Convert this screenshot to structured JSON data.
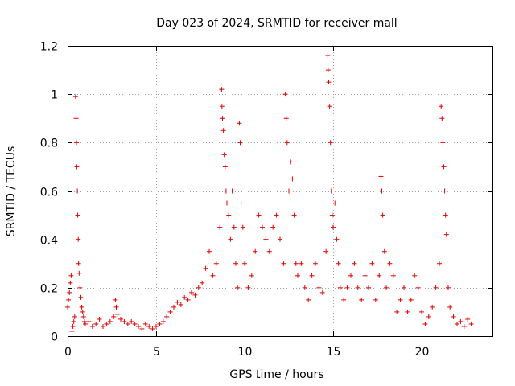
{
  "chart_data": {
    "type": "scatter",
    "title": "Day 023 of 2024, SRMTID for receiver mall",
    "xlabel": "GPS time / hours",
    "ylabel": "SRMTID / TECUs",
    "xlim": [
      0,
      24
    ],
    "ylim": [
      0,
      1.2
    ],
    "x_ticks": [
      0,
      5,
      10,
      15,
      20
    ],
    "y_ticks": [
      0,
      0.2,
      0.4,
      0.6,
      0.8,
      1,
      1.2
    ],
    "x_tick_labels": [
      "0",
      "5",
      "10",
      "15",
      "20"
    ],
    "y_tick_labels": [
      "0",
      "0.2",
      "0.4",
      "0.6",
      "0.8",
      "1",
      "1.2"
    ],
    "grid": true,
    "marker": "+",
    "color": "#e00000",
    "series": [
      {
        "name": "SRMTID",
        "points": [
          [
            0.0,
            0.12
          ],
          [
            0.05,
            0.15
          ],
          [
            0.1,
            0.18
          ],
          [
            0.15,
            0.22
          ],
          [
            0.2,
            0.25
          ],
          [
            0.25,
            0.02
          ],
          [
            0.3,
            0.04
          ],
          [
            0.35,
            0.06
          ],
          [
            0.4,
            0.08
          ],
          [
            0.45,
            0.99
          ],
          [
            0.48,
            0.9
          ],
          [
            0.5,
            0.8
          ],
          [
            0.52,
            0.7
          ],
          [
            0.55,
            0.6
          ],
          [
            0.57,
            0.5
          ],
          [
            0.6,
            0.4
          ],
          [
            0.62,
            0.3
          ],
          [
            0.65,
            0.26
          ],
          [
            0.7,
            0.2
          ],
          [
            0.75,
            0.16
          ],
          [
            0.8,
            0.12
          ],
          [
            0.85,
            0.1
          ],
          [
            0.9,
            0.08
          ],
          [
            0.95,
            0.06
          ],
          [
            1.0,
            0.05
          ],
          [
            1.2,
            0.06
          ],
          [
            1.4,
            0.04
          ],
          [
            1.6,
            0.05
          ],
          [
            1.8,
            0.07
          ],
          [
            2.0,
            0.04
          ],
          [
            2.2,
            0.05
          ],
          [
            2.4,
            0.06
          ],
          [
            2.6,
            0.08
          ],
          [
            2.7,
            0.15
          ],
          [
            2.75,
            0.12
          ],
          [
            2.8,
            0.09
          ],
          [
            3.0,
            0.07
          ],
          [
            3.2,
            0.06
          ],
          [
            3.4,
            0.05
          ],
          [
            3.6,
            0.06
          ],
          [
            3.8,
            0.05
          ],
          [
            4.0,
            0.04
          ],
          [
            4.2,
            0.03
          ],
          [
            4.4,
            0.05
          ],
          [
            4.6,
            0.04
          ],
          [
            4.8,
            0.03
          ],
          [
            5.0,
            0.04
          ],
          [
            5.2,
            0.05
          ],
          [
            5.4,
            0.06
          ],
          [
            5.6,
            0.08
          ],
          [
            5.8,
            0.1
          ],
          [
            6.0,
            0.12
          ],
          [
            6.2,
            0.14
          ],
          [
            6.4,
            0.13
          ],
          [
            6.6,
            0.16
          ],
          [
            6.8,
            0.15
          ],
          [
            7.0,
            0.18
          ],
          [
            7.2,
            0.17
          ],
          [
            7.4,
            0.2
          ],
          [
            7.6,
            0.22
          ],
          [
            7.8,
            0.28
          ],
          [
            8.0,
            0.35
          ],
          [
            8.2,
            0.25
          ],
          [
            8.4,
            0.3
          ],
          [
            8.6,
            0.45
          ],
          [
            8.7,
            1.02
          ],
          [
            8.72,
            0.95
          ],
          [
            8.75,
            0.9
          ],
          [
            8.8,
            0.85
          ],
          [
            8.85,
            0.75
          ],
          [
            8.9,
            0.7
          ],
          [
            8.95,
            0.6
          ],
          [
            9.0,
            0.55
          ],
          [
            9.1,
            0.5
          ],
          [
            9.2,
            0.4
          ],
          [
            9.3,
            0.6
          ],
          [
            9.4,
            0.45
          ],
          [
            9.5,
            0.3
          ],
          [
            9.6,
            0.2
          ],
          [
            9.7,
            0.88
          ],
          [
            9.75,
            0.8
          ],
          [
            9.8,
            0.55
          ],
          [
            9.9,
            0.45
          ],
          [
            10.0,
            0.3
          ],
          [
            10.2,
            0.2
          ],
          [
            10.4,
            0.25
          ],
          [
            10.6,
            0.35
          ],
          [
            10.8,
            0.5
          ],
          [
            11.0,
            0.45
          ],
          [
            11.2,
            0.4
          ],
          [
            11.4,
            0.35
          ],
          [
            11.6,
            0.45
          ],
          [
            11.8,
            0.5
          ],
          [
            12.0,
            0.4
          ],
          [
            12.2,
            0.3
          ],
          [
            12.3,
            1.0
          ],
          [
            12.35,
            0.9
          ],
          [
            12.4,
            0.8
          ],
          [
            12.5,
            0.6
          ],
          [
            12.6,
            0.72
          ],
          [
            12.7,
            0.65
          ],
          [
            12.8,
            0.5
          ],
          [
            12.9,
            0.3
          ],
          [
            13.0,
            0.25
          ],
          [
            13.2,
            0.3
          ],
          [
            13.4,
            0.2
          ],
          [
            13.6,
            0.15
          ],
          [
            13.8,
            0.25
          ],
          [
            14.0,
            0.3
          ],
          [
            14.2,
            0.2
          ],
          [
            14.4,
            0.18
          ],
          [
            14.6,
            0.35
          ],
          [
            14.7,
            1.16
          ],
          [
            14.72,
            1.1
          ],
          [
            14.75,
            1.05
          ],
          [
            14.8,
            0.95
          ],
          [
            14.85,
            0.8
          ],
          [
            14.9,
            0.6
          ],
          [
            14.95,
            0.5
          ],
          [
            15.0,
            0.45
          ],
          [
            15.1,
            0.55
          ],
          [
            15.2,
            0.4
          ],
          [
            15.3,
            0.3
          ],
          [
            15.4,
            0.2
          ],
          [
            15.6,
            0.15
          ],
          [
            15.8,
            0.2
          ],
          [
            16.0,
            0.25
          ],
          [
            16.2,
            0.3
          ],
          [
            16.4,
            0.2
          ],
          [
            16.6,
            0.15
          ],
          [
            16.8,
            0.25
          ],
          [
            17.0,
            0.2
          ],
          [
            17.2,
            0.3
          ],
          [
            17.4,
            0.15
          ],
          [
            17.6,
            0.25
          ],
          [
            17.7,
            0.66
          ],
          [
            17.75,
            0.6
          ],
          [
            17.8,
            0.5
          ],
          [
            17.9,
            0.35
          ],
          [
            18.0,
            0.2
          ],
          [
            18.2,
            0.3
          ],
          [
            18.4,
            0.25
          ],
          [
            18.6,
            0.1
          ],
          [
            18.8,
            0.15
          ],
          [
            19.0,
            0.2
          ],
          [
            19.2,
            0.1
          ],
          [
            19.4,
            0.15
          ],
          [
            19.6,
            0.25
          ],
          [
            19.8,
            0.2
          ],
          [
            20.0,
            0.1
          ],
          [
            20.2,
            0.05
          ],
          [
            20.4,
            0.08
          ],
          [
            20.6,
            0.12
          ],
          [
            20.8,
            0.2
          ],
          [
            21.0,
            0.3
          ],
          [
            21.1,
            0.95
          ],
          [
            21.15,
            0.9
          ],
          [
            21.2,
            0.8
          ],
          [
            21.25,
            0.7
          ],
          [
            21.3,
            0.6
          ],
          [
            21.35,
            0.5
          ],
          [
            21.4,
            0.42
          ],
          [
            21.5,
            0.2
          ],
          [
            21.6,
            0.12
          ],
          [
            21.8,
            0.08
          ],
          [
            22.0,
            0.05
          ],
          [
            22.2,
            0.06
          ],
          [
            22.4,
            0.04
          ],
          [
            22.6,
            0.07
          ],
          [
            22.8,
            0.05
          ]
        ]
      }
    ]
  }
}
